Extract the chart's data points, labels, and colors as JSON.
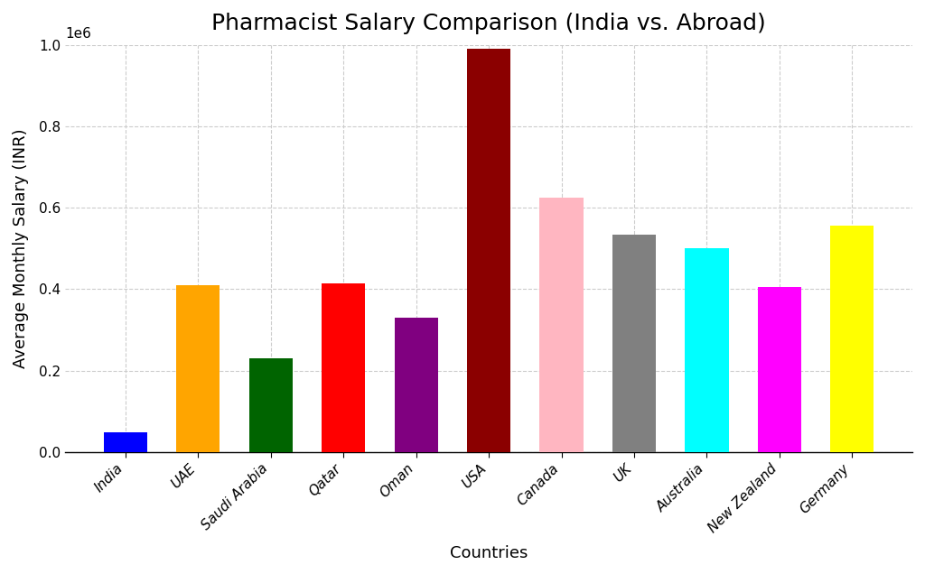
{
  "title": "Pharmacist Salary Comparison (India vs. Abroad)",
  "xlabel": "Countries",
  "ylabel": "Average Monthly Salary (INR)",
  "categories": [
    "India",
    "UAE",
    "Saudi Arabia",
    "Qatar",
    "Oman",
    "USA",
    "Canada",
    "UK",
    "Australia",
    "New Zealand",
    "Germany"
  ],
  "values": [
    50000,
    410000,
    230000,
    415000,
    330000,
    990000,
    625000,
    535000,
    500000,
    405000,
    555000
  ],
  "bar_colors": [
    "#0000FF",
    "#FFA500",
    "#006400",
    "#FF0000",
    "#800080",
    "#8B0000",
    "#FFB6C1",
    "#808080",
    "#00FFFF",
    "#FF00FF",
    "#FFFF00"
  ],
  "bar_width": 0.6,
  "ylim": [
    0,
    1000000
  ],
  "yticks": [
    0,
    200000,
    400000,
    600000,
    800000,
    1000000
  ],
  "background_color": "#FFFFFF",
  "grid_color": "#CCCCCC",
  "title_fontsize": 18,
  "label_fontsize": 13,
  "tick_fontsize": 11
}
